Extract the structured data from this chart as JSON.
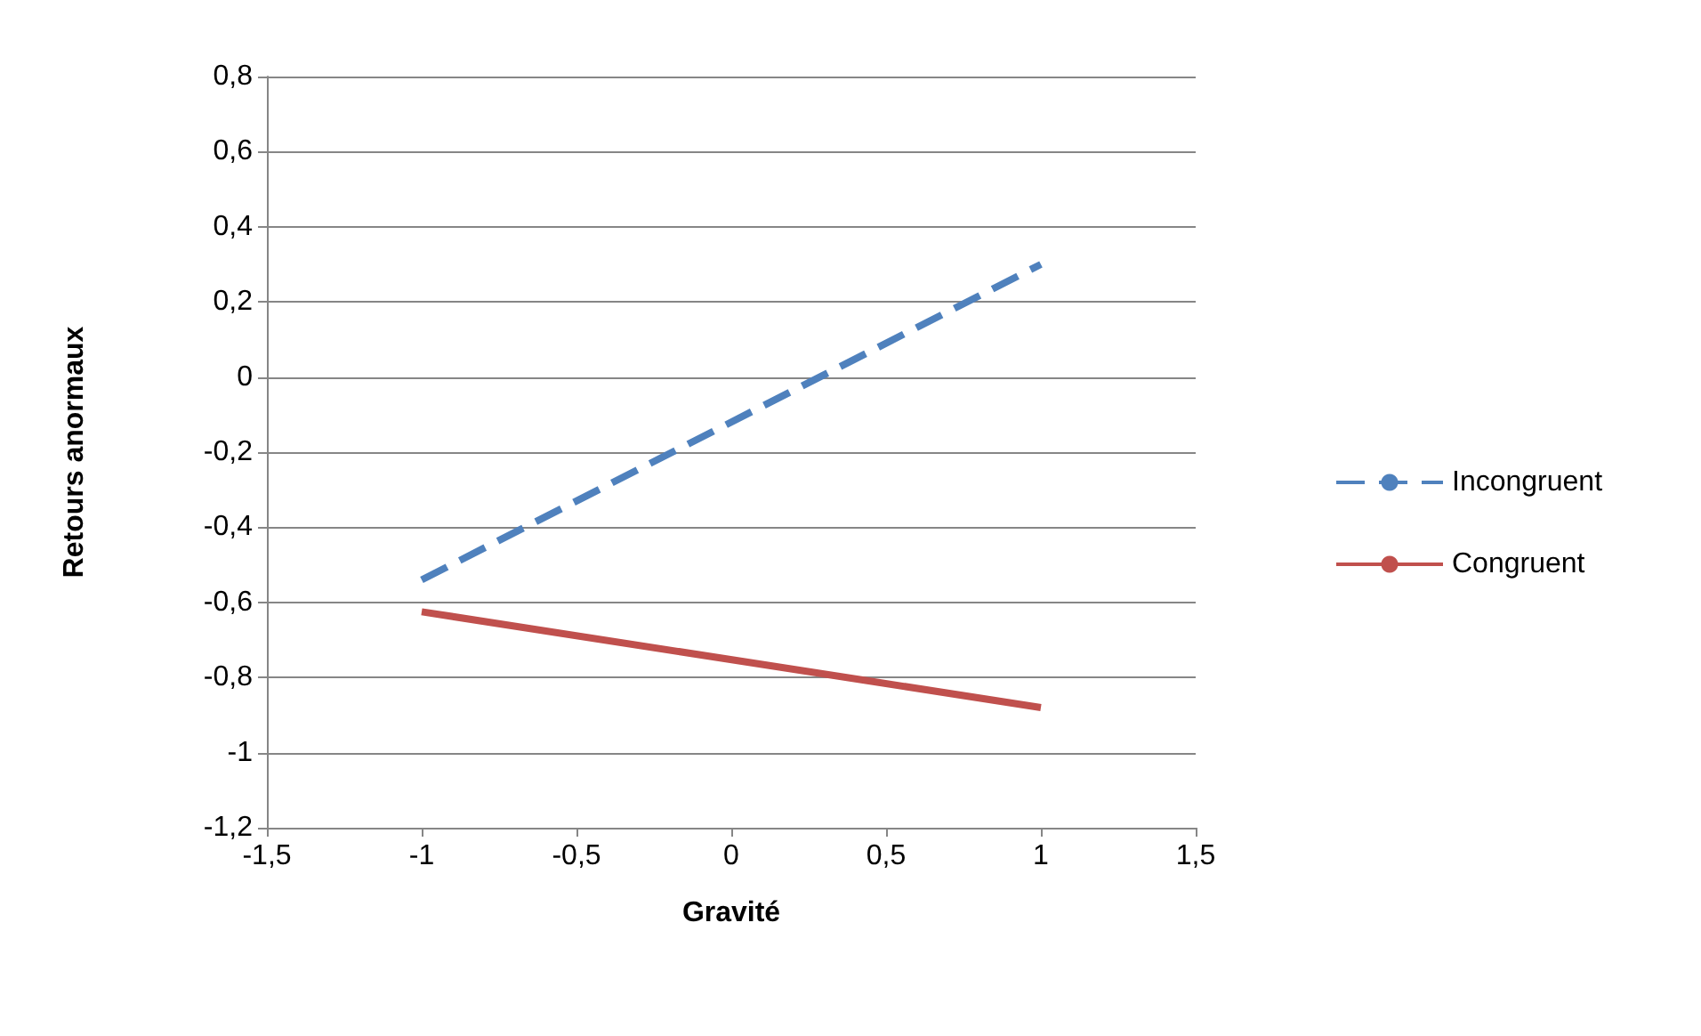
{
  "chart_data": {
    "type": "line",
    "xlabel": "Gravité",
    "ylabel": "Retours anormaux",
    "xlim": [
      -1.5,
      1.5
    ],
    "xticks": [
      {
        "value": -1.5,
        "label": "-1,5"
      },
      {
        "value": -1,
        "label": "-1"
      },
      {
        "value": -0.5,
        "label": "-0,5"
      },
      {
        "value": 0,
        "label": "0"
      },
      {
        "value": 0.5,
        "label": "0,5"
      },
      {
        "value": 1,
        "label": "1"
      },
      {
        "value": 1.5,
        "label": "1,5"
      }
    ],
    "ylim": [
      -1.2,
      0.8
    ],
    "yticks": [
      {
        "value": -1.2,
        "label": "-1,2"
      },
      {
        "value": -1,
        "label": "-1"
      },
      {
        "value": -0.8,
        "label": "-0,8"
      },
      {
        "value": -0.6,
        "label": "-0,6"
      },
      {
        "value": -0.4,
        "label": "-0,4"
      },
      {
        "value": -0.2,
        "label": "-0,2"
      },
      {
        "value": 0,
        "label": "0"
      },
      {
        "value": 0.2,
        "label": "0,2"
      },
      {
        "value": 0.4,
        "label": "0,4"
      },
      {
        "value": 0.6,
        "label": "0,6"
      },
      {
        "value": 0.8,
        "label": "0,8"
      }
    ],
    "x": [
      -1,
      1
    ],
    "series": [
      {
        "name": "Incongruent",
        "color": "#4f81bd",
        "values": [
          -0.54,
          0.3
        ],
        "line_style": "dashed"
      },
      {
        "name": "Congruent",
        "color": "#c0504d",
        "values": [
          -0.625,
          -0.88
        ],
        "line_style": "solid"
      }
    ],
    "grid": "y",
    "legend": "right",
    "marker": "none"
  }
}
